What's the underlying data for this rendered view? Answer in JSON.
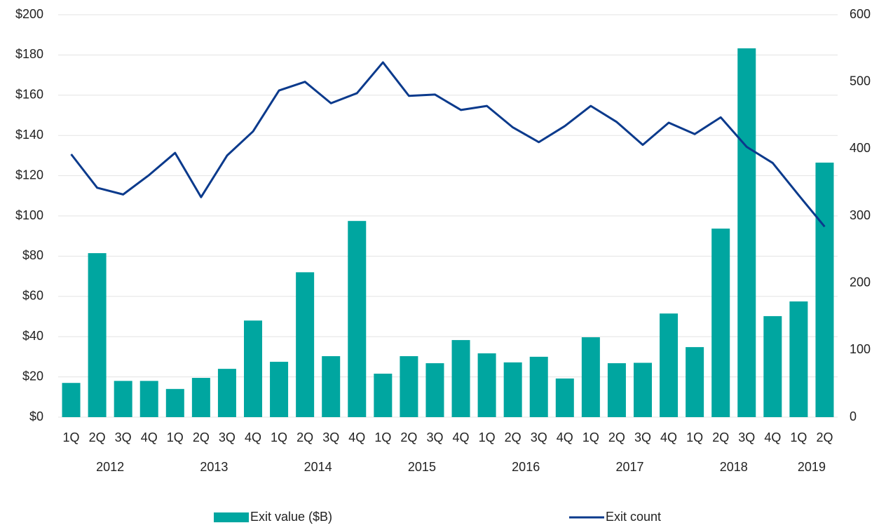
{
  "chart_data": {
    "type": "bar+line",
    "categories": [
      "1Q",
      "2Q",
      "3Q",
      "4Q",
      "1Q",
      "2Q",
      "3Q",
      "4Q",
      "1Q",
      "2Q",
      "3Q",
      "4Q",
      "1Q",
      "2Q",
      "3Q",
      "4Q",
      "1Q",
      "2Q",
      "3Q",
      "4Q",
      "1Q",
      "2Q",
      "3Q",
      "4Q",
      "1Q",
      "2Q",
      "3Q",
      "4Q",
      "1Q",
      "2Q"
    ],
    "years": [
      "2012",
      "2013",
      "2014",
      "2015",
      "2016",
      "2017",
      "2018",
      "2019"
    ],
    "series": [
      {
        "name": "Exit value ($B)",
        "type": "bar",
        "color": "#00a6a0",
        "values": [
          17,
          81.5,
          18,
          18,
          14,
          19.5,
          24,
          48,
          27.5,
          72,
          30.3,
          97.5,
          21.6,
          30.3,
          26.8,
          38.3,
          31.7,
          27.2,
          30,
          19.2,
          39.7,
          26.8,
          27,
          51.5,
          34.8,
          93.7,
          183.3,
          50.2,
          57.5,
          126.5
        ]
      },
      {
        "name": "Exit count",
        "type": "line",
        "axis": "y2",
        "color": "#0b3a8c",
        "values": [
          392,
          342,
          332,
          361,
          394,
          328,
          390,
          426,
          487,
          500,
          468,
          483,
          529,
          479,
          481,
          458,
          464,
          432,
          410,
          434,
          464,
          440,
          406,
          439,
          422,
          447,
          403,
          379,
          331,
          284
        ]
      }
    ],
    "ylim": [
      0,
      200
    ],
    "yticks": [
      {
        "value": 0,
        "label": "$0"
      },
      {
        "value": 20,
        "label": "$20"
      },
      {
        "value": 40,
        "label": "$40"
      },
      {
        "value": 60,
        "label": "$60"
      },
      {
        "value": 80,
        "label": "$80"
      },
      {
        "value": 100,
        "label": "$100"
      },
      {
        "value": 120,
        "label": "$120"
      },
      {
        "value": 140,
        "label": "$140"
      },
      {
        "value": 160,
        "label": "$160"
      },
      {
        "value": 180,
        "label": "$180"
      },
      {
        "value": 200,
        "label": "$200"
      }
    ],
    "y2lim": [
      0,
      600
    ],
    "y2ticks": [
      0,
      100,
      200,
      300,
      400,
      500,
      600
    ],
    "grid": true
  }
}
